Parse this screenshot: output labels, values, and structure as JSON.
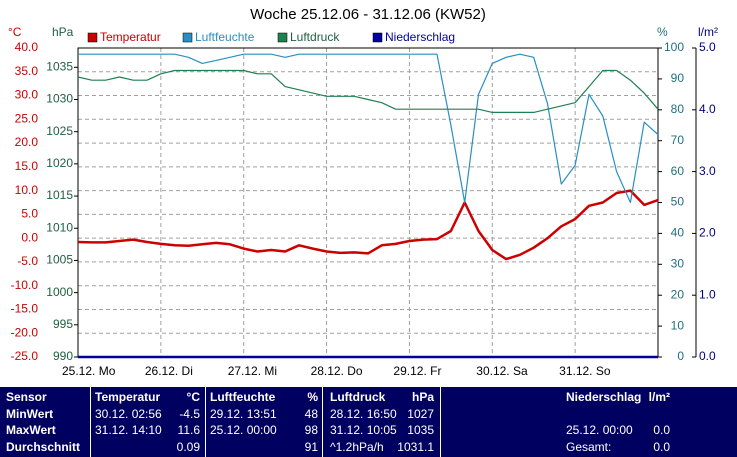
{
  "chart_data": {
    "type": "line",
    "title": "Woche 25.12.06 - 31.12.06 (KW52)",
    "y_label": "°C",
    "y2_label": "hPa",
    "y3_label": "%",
    "y4_label": "l/m²",
    "x": [
      0,
      4,
      8,
      12,
      16,
      20,
      24,
      28,
      32,
      36,
      40,
      44,
      48,
      52,
      56,
      60,
      64,
      68,
      72,
      76,
      80,
      84,
      88,
      92,
      96,
      100,
      104,
      108,
      112,
      116,
      120,
      124,
      128,
      132,
      136,
      140,
      144,
      148,
      152,
      156,
      160,
      164,
      168
    ],
    "xlim": [
      0,
      168
    ],
    "xticks": [
      {
        "value": 0,
        "label": "25.12. Mo"
      },
      {
        "value": 24,
        "label": "26.12. Di"
      },
      {
        "value": 48,
        "label": "27.12. Mi"
      },
      {
        "value": 72,
        "label": "28.12. Do"
      },
      {
        "value": 96,
        "label": "29.12. Fr"
      },
      {
        "value": 120,
        "label": "30.12. Sa"
      },
      {
        "value": 144,
        "label": "31.12. So"
      }
    ],
    "ylim": [
      -25,
      40
    ],
    "yticks": [
      {
        "value": 40,
        "label": "40.0"
      },
      {
        "value": 35,
        "label": "35.0"
      },
      {
        "value": 30,
        "label": "30.0"
      },
      {
        "value": 25,
        "label": "25.0"
      },
      {
        "value": 20,
        "label": "20.0"
      },
      {
        "value": 15,
        "label": "15.0"
      },
      {
        "value": 10,
        "label": "10.0"
      },
      {
        "value": 5,
        "label": "5.0"
      },
      {
        "value": 0,
        "label": "0.0"
      },
      {
        "value": -5,
        "label": "-5.0"
      },
      {
        "value": -10,
        "label": "-10.0"
      },
      {
        "value": -15,
        "label": "-15.0"
      },
      {
        "value": -20,
        "label": "-20.0"
      },
      {
        "value": -25,
        "label": "-25.0"
      }
    ],
    "y2lim": [
      990,
      1038
    ],
    "y2ticks": [
      1035,
      1030,
      1025,
      1020,
      1015,
      1010,
      1005,
      1000,
      995,
      990
    ],
    "y3lim": [
      0,
      100
    ],
    "y3ticks": [
      100,
      90,
      80,
      70,
      60,
      50,
      40,
      30,
      20,
      10,
      0
    ],
    "y4lim": [
      0,
      5
    ],
    "y4ticks": [
      {
        "value": 5,
        "label": "5.0"
      },
      {
        "value": 4,
        "label": "4.0"
      },
      {
        "value": 3,
        "label": "3.0"
      },
      {
        "value": 2,
        "label": "2.0"
      },
      {
        "value": 1,
        "label": "1.0"
      },
      {
        "value": 0,
        "label": "0.0"
      }
    ],
    "grid": true,
    "series": [
      {
        "name": "Temperatur",
        "color": "#cc0000",
        "axis": "y",
        "values": [
          -0.8,
          -0.9,
          -0.9,
          -0.6,
          -0.3,
          -0.8,
          -1.2,
          -1.5,
          -1.6,
          -1.3,
          -1.0,
          -1.3,
          -2.2,
          -2.8,
          -2.5,
          -2.8,
          -1.5,
          -2.2,
          -2.8,
          -3.1,
          -3.0,
          -3.2,
          -1.5,
          -1.2,
          -0.6,
          -0.3,
          -0.2,
          1.5,
          7.5,
          1.5,
          -2.5,
          -4.4,
          -3.5,
          -2.0,
          0.0,
          2.5,
          4.0,
          6.8,
          7.5,
          9.5,
          10.0,
          7.0,
          8.0
        ]
      },
      {
        "name": "Luftfeuchte",
        "color": "#2a8fc0",
        "axis": "y3",
        "values": [
          98,
          98,
          98,
          98,
          98,
          98,
          98,
          98,
          97,
          95,
          96,
          97,
          98,
          98,
          98,
          97,
          98,
          98,
          98,
          98,
          98,
          98,
          98,
          98,
          98,
          98,
          98,
          75,
          50,
          85,
          95,
          97,
          98,
          97,
          82,
          56,
          62,
          85,
          78,
          60,
          50,
          76,
          72
        ]
      },
      {
        "name": "Luftdruck",
        "color": "#1f8050",
        "axis": "y2",
        "values": [
          1033.5,
          1033,
          1033,
          1033.5,
          1033,
          1033,
          1034,
          1034.5,
          1034.5,
          1034.5,
          1034.5,
          1034.5,
          1034.5,
          1034,
          1034,
          1032,
          1031.5,
          1031,
          1030.5,
          1030.5,
          1030.5,
          1030,
          1029.5,
          1028.5,
          1028.5,
          1028.5,
          1028.5,
          1028.5,
          1028.5,
          1028.5,
          1028,
          1028,
          1028,
          1028,
          1028.5,
          1029,
          1029.5,
          1032,
          1034.5,
          1034.5,
          1033,
          1031,
          1028.5
        ]
      },
      {
        "name": "Niederschlag",
        "color": "#0000a0",
        "axis": "y4",
        "values": [
          0,
          0,
          0,
          0,
          0,
          0,
          0,
          0,
          0,
          0,
          0,
          0,
          0,
          0,
          0,
          0,
          0,
          0,
          0,
          0,
          0,
          0,
          0,
          0,
          0,
          0,
          0,
          0,
          0,
          0,
          0,
          0,
          0,
          0,
          0,
          0,
          0,
          0,
          0,
          0,
          0,
          0,
          0
        ]
      }
    ]
  },
  "table": {
    "columns": [
      "Sensor",
      "Temperatur",
      "°C",
      "Luftfeuchte",
      "%",
      "Luftdruck",
      "hPa",
      "Niederschlag",
      "l/m²"
    ],
    "rows": [
      [
        "MinWert",
        "30.12.  02:56",
        "-4.5",
        "29.12.  13:51",
        "48",
        "28.12.  16:50",
        "1027",
        null,
        null
      ],
      [
        "MaxWert",
        "31.12.  14:10",
        "11.6",
        "25.12.  00:00",
        "98",
        "31.12.  10:05",
        "1035",
        "25.12.  00:00",
        "0.0"
      ],
      [
        "Durchschnitt",
        null,
        "0.09",
        null,
        "91",
        "^1.2hPa/h",
        "1031.1",
        "Gesamt:",
        "0.0"
      ]
    ]
  }
}
